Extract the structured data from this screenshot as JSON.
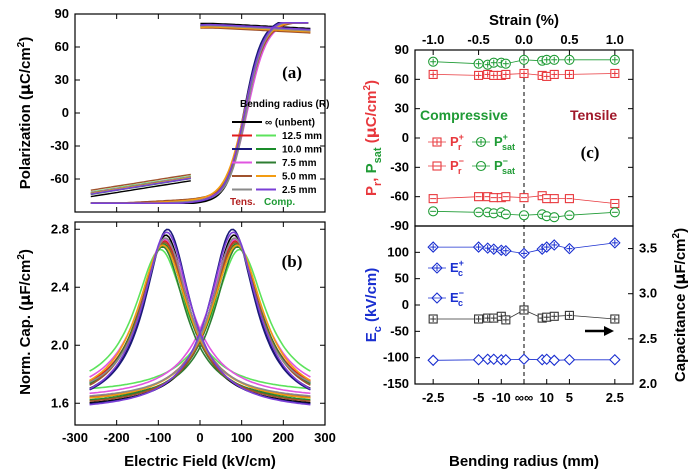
{
  "chart_data": [
    {
      "id": "a",
      "type": "line",
      "panel_label": "(a)",
      "xlabel": "",
      "ylabel": "Polarization (μC/cm²)",
      "ylabel_parts": {
        "main": "Polarization  (",
        "mu": "μ",
        "unit": "C/cm",
        "sup": "2",
        "close": ")"
      },
      "xlim": [
        -300,
        300
      ],
      "ylim": [
        -90,
        90
      ],
      "yticks": [
        -90,
        -60,
        -30,
        0,
        30,
        60,
        90
      ],
      "ytick_labels": [
        "",
        "-60",
        "-30",
        "0",
        "30",
        "60",
        "90"
      ],
      "legend_title": "Bending radius (R)",
      "legend_footer": {
        "tensile": "Tens.",
        "compressive": "Comp."
      },
      "legend_rows": [
        {
          "tensile": "∞ (unbent)",
          "compressive": "",
          "label": "∞ (unbent)"
        },
        {
          "tensile": "",
          "compressive": "",
          "label": "12.5 mm"
        },
        {
          "tensile": "",
          "compressive": "",
          "label": "10.0 mm"
        },
        {
          "tensile": "",
          "compressive": "",
          "label": "7.5 mm"
        },
        {
          "tensile": "",
          "compressive": "",
          "label": "5.0 mm"
        },
        {
          "tensile": "",
          "compressive": "",
          "label": "2.5 mm"
        }
      ],
      "series": [
        {
          "name": "∞ (unbent)",
          "color": "#000000",
          "Pmax": 82,
          "Pr": 55,
          "Ec": 110
        },
        {
          "name": "12.5 mm tensile",
          "color": "#e11b1b",
          "Pmax": 80,
          "Pr": 52,
          "Ec": 112
        },
        {
          "name": "12.5 mm compressive",
          "color": "#5ce35c",
          "Pmax": 79,
          "Pr": 53,
          "Ec": 108
        },
        {
          "name": "10.0 mm tensile",
          "color": "#1a1a7a",
          "Pmax": 81,
          "Pr": 56,
          "Ec": 106
        },
        {
          "name": "10.0 mm compressive",
          "color": "#1a8c2a",
          "Pmax": 80,
          "Pr": 54,
          "Ec": 110
        },
        {
          "name": "7.5 mm tensile",
          "color": "#e055e0",
          "Pmax": 79,
          "Pr": 52,
          "Ec": 114
        },
        {
          "name": "7.5 mm compressive",
          "color": "#2e7d32",
          "Pmax": 80,
          "Pr": 55,
          "Ec": 109
        },
        {
          "name": "5.0 mm tensile",
          "color": "#a0522d",
          "Pmax": 78,
          "Pr": 51,
          "Ec": 111
        },
        {
          "name": "5.0 mm compressive",
          "color": "#f39c12",
          "Pmax": 79,
          "Pr": 53,
          "Ec": 107
        },
        {
          "name": "2.5 mm tensile",
          "color": "#8a8a8a",
          "Pmax": 80,
          "Pr": 54,
          "Ec": 112
        },
        {
          "name": "2.5 mm compressive",
          "color": "#7a3fd6",
          "Pmax": 81,
          "Pr": 55,
          "Ec": 108
        }
      ]
    },
    {
      "id": "b",
      "type": "line",
      "panel_label": "(b)",
      "xlabel": "Electric Field  (kV/cm)",
      "ylabel": "Norm. Cap. (μF/cm²)",
      "ylabel_parts": {
        "main": "Norm. Cap.  (",
        "mu": "μ",
        "unit": "F/cm",
        "sup": "2",
        "close": ")"
      },
      "xlim": [
        -300,
        300
      ],
      "ylim": [
        1.45,
        2.85
      ],
      "xticks": [
        -300,
        -200,
        -100,
        0,
        100,
        200,
        300
      ],
      "xtick_labels": [
        "-300",
        "-200",
        "-100",
        "0",
        "100",
        "200",
        "300"
      ],
      "yticks": [
        1.6,
        2.0,
        2.4,
        2.8
      ],
      "ytick_labels": [
        "1.6",
        "2.0",
        "2.4",
        "2.8"
      ],
      "series": [
        {
          "name": "∞ (unbent)",
          "color": "#000000",
          "peak": 2.76,
          "peakE": 82,
          "low": 1.56
        },
        {
          "name": "12.5 mm tensile",
          "color": "#e11b1b",
          "peak": 2.72,
          "peakE": 85,
          "low": 1.6
        },
        {
          "name": "12.5 mm compressive",
          "color": "#5ce35c",
          "peak": 2.66,
          "peakE": 95,
          "low": 1.66
        },
        {
          "name": "10.0 mm tensile",
          "color": "#1a1a7a",
          "peak": 2.8,
          "peakE": 78,
          "low": 1.55
        },
        {
          "name": "10.0 mm compressive",
          "color": "#1a8c2a",
          "peak": 2.7,
          "peakE": 88,
          "low": 1.58
        },
        {
          "name": "7.5 mm tensile",
          "color": "#e055e0",
          "peak": 2.73,
          "peakE": 84,
          "low": 1.62
        },
        {
          "name": "7.5 mm compressive",
          "color": "#2e7d32",
          "peak": 2.68,
          "peakE": 90,
          "low": 1.6
        },
        {
          "name": "5.0 mm tensile",
          "color": "#a0522d",
          "peak": 2.71,
          "peakE": 86,
          "low": 1.57
        },
        {
          "name": "5.0 mm compressive",
          "color": "#f39c12",
          "peak": 2.69,
          "peakE": 89,
          "low": 1.59
        },
        {
          "name": "2.5 mm tensile",
          "color": "#8a8a8a",
          "peak": 2.74,
          "peakE": 83,
          "low": 1.61
        },
        {
          "name": "2.5 mm compressive",
          "color": "#7a3fd6",
          "peak": 2.78,
          "peakE": 80,
          "low": 1.54
        }
      ]
    },
    {
      "id": "c",
      "type": "scatter",
      "panel_label": "(c)",
      "top_xlabel": "Strain  (%)",
      "xlabel": "Bending radius  (mm)",
      "strain_ticks": [
        -1.0,
        -0.5,
        0.0,
        0.5,
        1.0
      ],
      "strain_tick_labels": [
        "-1.0",
        "-0.5",
        "0.0",
        "0.5",
        "1.0"
      ],
      "radius_tick_labels": [
        {
          "label": "-2.5",
          "strain": -1.0
        },
        {
          "label": "-5",
          "strain": -0.5
        },
        {
          "label": "-10",
          "strain": -0.25
        },
        {
          "label": "∞∞",
          "strain": 0.0
        },
        {
          "label": "10",
          "strain": 0.25
        },
        {
          "label": "5",
          "strain": 0.5
        },
        {
          "label": "2.5",
          "strain": 1.0
        }
      ],
      "xlim": [
        -1.2,
        1.2
      ],
      "strains": [
        -1.0,
        -0.5,
        -0.4,
        -0.333,
        -0.25,
        -0.2,
        0.0,
        0.2,
        0.25,
        0.333,
        0.5,
        1.0
      ],
      "region_labels": {
        "compressive": "Compressive",
        "tensile": "Tensile"
      },
      "upper": {
        "ylabel_parts": {
          "p": "P",
          "r": "r",
          "comma": ", ",
          "ps": "P",
          "sat": "sat",
          "open": "  (",
          "mu": "μ",
          "unit": "C/cm",
          "sup": "2",
          "close": ")"
        },
        "ylim": [
          -90,
          90
        ],
        "yticks": [
          -90,
          -60,
          -30,
          0,
          30,
          60,
          90
        ],
        "ytick_labels": [
          "-90",
          "-60",
          "-30",
          "0",
          "30",
          "60",
          "90"
        ],
        "series": [
          {
            "name": "Pr+",
            "base": "P",
            "sup": "+",
            "sub": "r",
            "color": "#e8383d",
            "marker": "square-plus",
            "values": [
              65,
              64,
              65,
              64,
              64,
              65,
              66,
              64,
              63,
              65,
              65,
              66
            ]
          },
          {
            "name": "Psat+",
            "base": "P",
            "sup": "+",
            "sub": "sat",
            "color": "#1f9b35",
            "marker": "circle-plus",
            "values": [
              78,
              76,
              75,
              77,
              77,
              76,
              80,
              79,
              80,
              80,
              80,
              80
            ]
          },
          {
            "name": "Pr-",
            "base": "P",
            "sup": "−",
            "sub": "r",
            "color": "#e8383d",
            "marker": "square-minus",
            "values": [
              -62,
              -60,
              -60,
              -61,
              -61,
              -60,
              -61,
              -59,
              -62,
              -62,
              -62,
              -67
            ]
          },
          {
            "name": "Psat-",
            "base": "P",
            "sup": "−",
            "sub": "sat",
            "color": "#1f9b35",
            "marker": "circle-minus",
            "values": [
              -75,
              -76,
              -76,
              -77,
              -76,
              -78,
              -79,
              -78,
              -80,
              -81,
              -79,
              -76
            ]
          }
        ]
      },
      "lower": {
        "ylabel_parts": {
          "e": "E",
          "c": "c",
          "open": "  (",
          "unit": "kV/cm",
          "close": ")"
        },
        "ylim": [
          -150,
          150
        ],
        "yticks": [
          -150,
          -100,
          -50,
          0,
          50,
          100,
          150
        ],
        "ytick_labels": [
          "-150",
          "-100",
          "-50",
          "0",
          "50",
          "100",
          "150"
        ],
        "right_ylabel_parts": {
          "main": "Capacitance  (",
          "mu": "μ",
          "unit": "F/cm",
          "sup": "2",
          "close": ")"
        },
        "right_ylim": [
          2.0,
          3.75
        ],
        "right_yticks": [
          2.0,
          2.5,
          3.0,
          3.5
        ],
        "right_ytick_labels": [
          "2.0",
          "2.5",
          "3.0",
          "3.5"
        ],
        "series": [
          {
            "name": "Ec+",
            "base": "E",
            "sup": "+",
            "sub": "c",
            "color": "#1a2fd0",
            "marker": "diamond-plus",
            "values": [
              110,
              110,
              108,
              106,
              104,
              103,
              98,
              106,
              110,
              114,
              107,
              118
            ]
          },
          {
            "name": "Ec-",
            "base": "E",
            "sup": "−",
            "sub": "c",
            "color": "#1a2fd0",
            "marker": "diamond",
            "values": [
              -105,
              -104,
              -103,
              -103,
              -104,
              -104,
              -103,
              -104,
              -103,
              -105,
              -104,
              -104
            ]
          },
          {
            "name": "Capacitance",
            "axis": "right",
            "color": "#333333",
            "marker": "square-plus",
            "values": [
              2.72,
              2.72,
              2.73,
              2.73,
              2.75,
              2.71,
              2.82,
              2.73,
              2.74,
              2.75,
              2.76,
              2.72
            ]
          }
        ]
      }
    }
  ]
}
